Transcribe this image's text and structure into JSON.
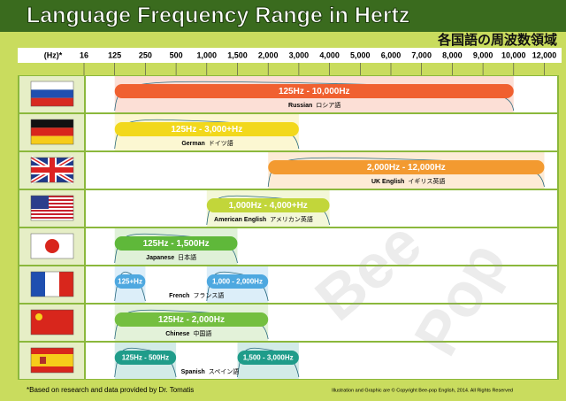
{
  "chart_data": {
    "type": "range",
    "title": "Language Frequency Range in Hertz",
    "subtitle": "各国語の周波数領域",
    "x_label": "(Hz)*",
    "xticks": [
      16,
      125,
      250,
      500,
      {
        "value": 1000,
        "label": "1,000"
      },
      {
        "value": 1500,
        "label": "1,500"
      },
      {
        "value": 2000,
        "label": "2,000"
      },
      {
        "value": 3000,
        "label": "3,000"
      },
      {
        "value": 4000,
        "label": "4,000"
      },
      {
        "value": 5000,
        "label": "5,000"
      },
      {
        "value": 6000,
        "label": "6,000"
      },
      {
        "value": 7000,
        "label": "7,000"
      },
      {
        "value": 8000,
        "label": "8,000"
      },
      {
        "value": 9000,
        "label": "9,000"
      },
      {
        "value": 10000,
        "label": "10,000"
      },
      {
        "value": 12000,
        "label": "12,000"
      }
    ],
    "rows": [
      {
        "name": "Russian",
        "native": "ロシア語",
        "color": "#f06030",
        "ranges": [
          {
            "values": [
              125,
              10000
            ],
            "value_label": "125Hz - 10,000Hz"
          }
        ]
      },
      {
        "name": "German",
        "native": "ドイツ語",
        "color": "#f2d81c",
        "ranges": [
          {
            "values": [
              125,
              3000
            ],
            "value_label": "125Hz - 3,000+Hz"
          }
        ]
      },
      {
        "name": "UK English",
        "native": "イギリス英語",
        "color": "#f39a30",
        "ranges": [
          {
            "values": [
              2000,
              12000
            ],
            "value_label": "2,000Hz - 12,000Hz"
          }
        ]
      },
      {
        "name": "American English",
        "native": "アメリカン英語",
        "color": "#c2d63a",
        "ranges": [
          {
            "values": [
              1000,
              4000
            ],
            "value_label": "1,000Hz - 4,000+Hz"
          }
        ]
      },
      {
        "name": "Japanese",
        "native": "日本語",
        "color": "#5fb83a",
        "ranges": [
          {
            "values": [
              125,
              1500
            ],
            "value_label": "125Hz - 1,500Hz"
          }
        ]
      },
      {
        "name": "French",
        "native": "フランス語",
        "color": "#4ea8e0",
        "ranges": [
          {
            "values": [
              125,
              250
            ],
            "value_label": "125+Hz"
          },
          {
            "values": [
              1000,
              2000
            ],
            "value_label": "1,000 - 2,000Hz"
          }
        ]
      },
      {
        "name": "Chinese",
        "native": "中国語",
        "color": "#74bf40",
        "ranges": [
          {
            "values": [
              125,
              2000
            ],
            "value_label": "125Hz - 2,000Hz"
          }
        ]
      },
      {
        "name": "Spanish",
        "native": "スペイン語",
        "color": "#1f9c8a",
        "ranges": [
          {
            "values": [
              125,
              500
            ],
            "value_label": "125Hz - 500Hz"
          },
          {
            "values": [
              1500,
              3000
            ],
            "value_label": "1,500 - 3,000Hz"
          }
        ]
      }
    ],
    "footnote": "*Based on research and data provided by Dr. Tomatis",
    "copyright": "Illustration and Graphic are © Copyright Bee-pop English, 2014. All Rights Reserved",
    "watermark": [
      "Bee",
      "Pop"
    ]
  }
}
